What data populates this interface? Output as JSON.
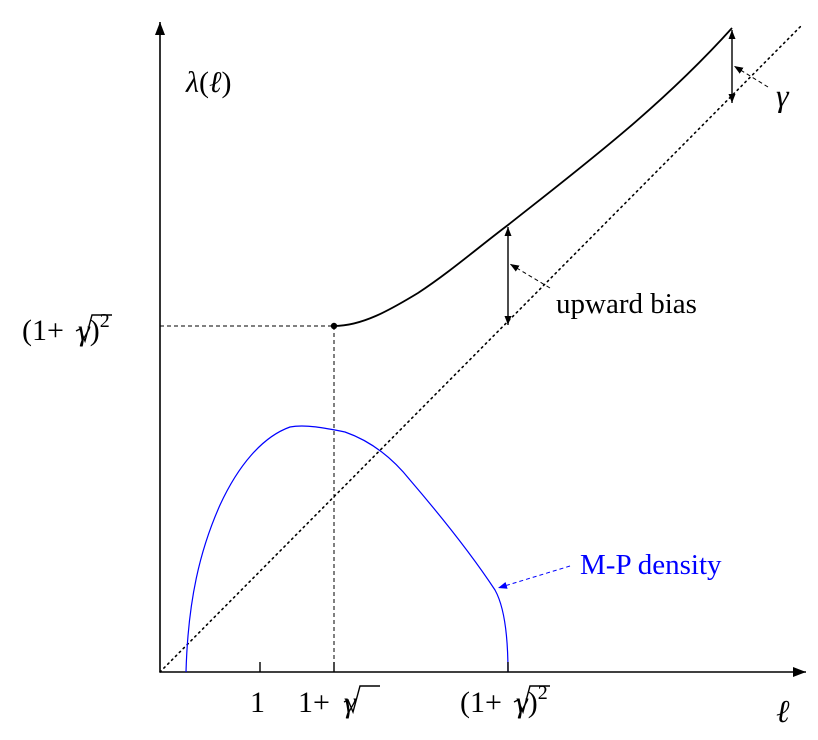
{
  "diagram": {
    "y_label": {
      "lambda": "λ",
      "open": "(",
      "ell": "ℓ",
      "close": ")"
    },
    "y_tick_label": {
      "open": "(1+",
      "gamma": "γ",
      "close": ")",
      "exp": "2"
    },
    "x_tick_labels": {
      "one": "1",
      "sqrt_point": {
        "prefix": "1+",
        "gamma": "γ"
      },
      "sq_point": {
        "open": "(1+",
        "gamma": "γ",
        "close": ")",
        "exp": "2"
      }
    },
    "x_axis_label": "ℓ",
    "gamma_label": "γ",
    "upward_bias_label": "upward bias",
    "mp_density_label": "M-P density",
    "colors": {
      "ink": "#000000",
      "density": "#0000ff"
    }
  }
}
